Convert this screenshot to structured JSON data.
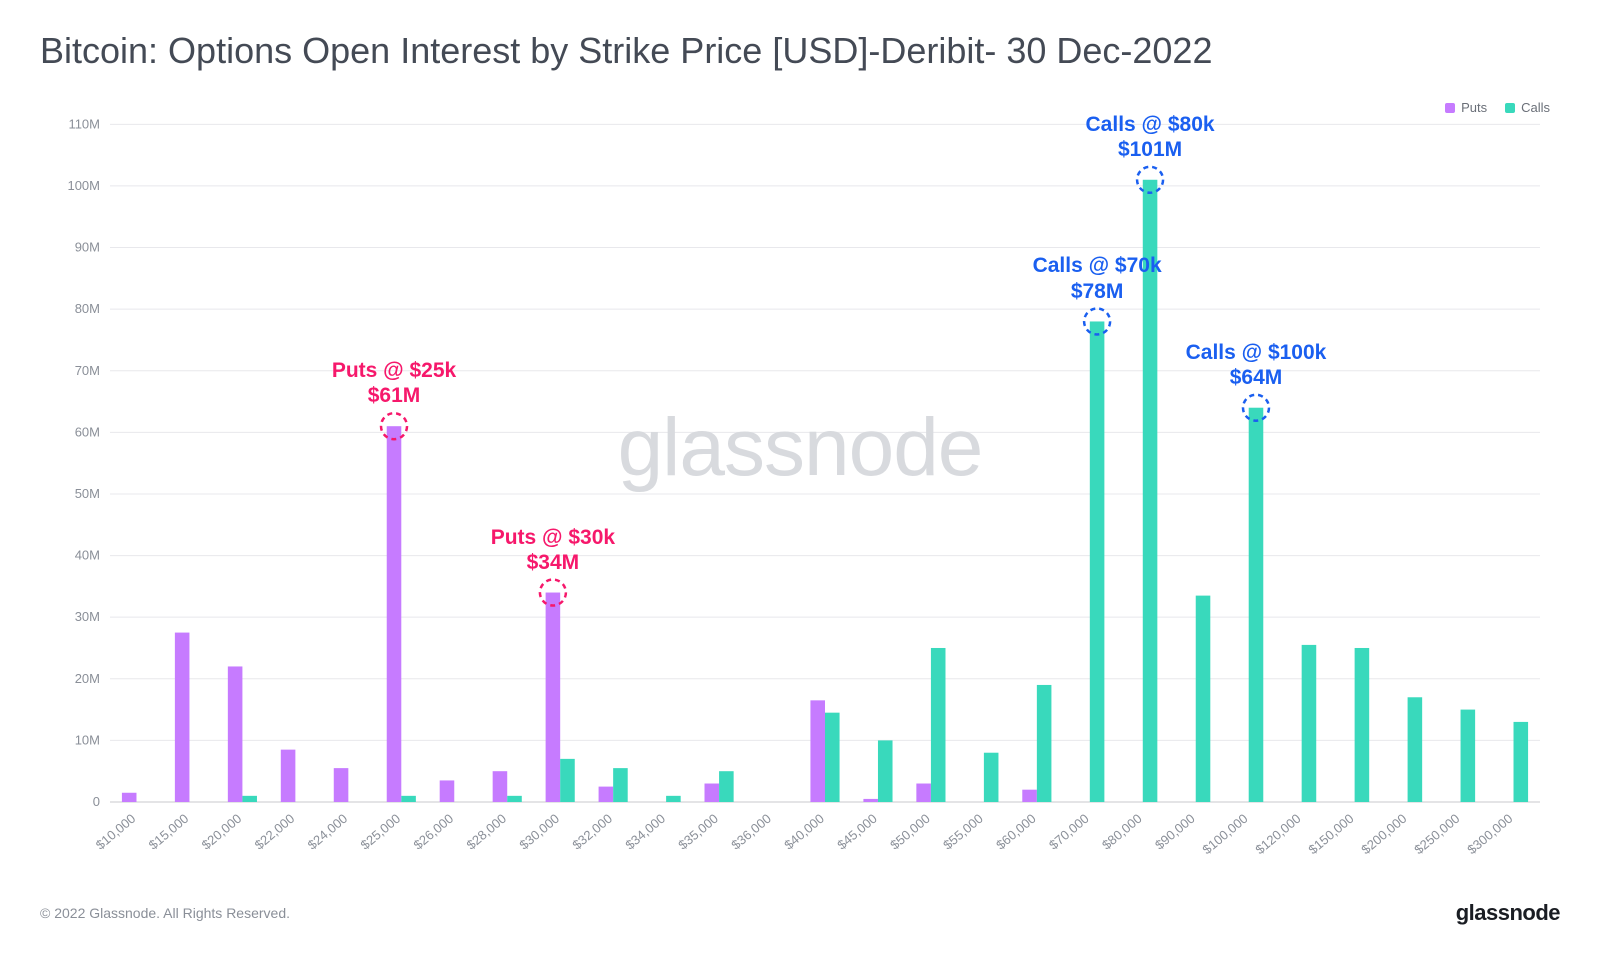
{
  "title": "Bitcoin: Options Open Interest by Strike Price [USD]-Deribit- 30 Dec-2022",
  "watermark": "glassnode",
  "copyright": "© 2022 Glassnode. All Rights Reserved.",
  "brand": "glassnode",
  "legend": {
    "puts_label": "Puts",
    "calls_label": "Calls"
  },
  "chart": {
    "type": "grouped-bar",
    "y_label_suffix": "M",
    "ylim": [
      0,
      112
    ],
    "yticks": [
      0,
      10,
      20,
      30,
      40,
      50,
      60,
      70,
      80,
      90,
      100,
      110
    ],
    "ytick_labels": [
      "0",
      "10M",
      "20M",
      "30M",
      "40M",
      "50M",
      "60M",
      "70M",
      "80M",
      "90M",
      "100M",
      "110M"
    ],
    "categories": [
      "$10,000",
      "$15,000",
      "$20,000",
      "$22,000",
      "$24,000",
      "$25,000",
      "$26,000",
      "$28,000",
      "$30,000",
      "$32,000",
      "$34,000",
      "$35,000",
      "$36,000",
      "$40,000",
      "$45,000",
      "$50,000",
      "$55,000",
      "$60,000",
      "$70,000",
      "$80,000",
      "$90,000",
      "$100,000",
      "$120,000",
      "$150,000",
      "$200,000",
      "$250,000",
      "$300,000"
    ],
    "series": [
      {
        "name": "Puts",
        "color": "#c67bff",
        "values": [
          1.5,
          27.5,
          22,
          8.5,
          5.5,
          61,
          3.5,
          5,
          34,
          2.5,
          0,
          3,
          0,
          16.5,
          0.5,
          3,
          0,
          2,
          0,
          0,
          0,
          0,
          0,
          0,
          0,
          0,
          0
        ]
      },
      {
        "name": "Calls",
        "color": "#39d9bc",
        "values": [
          0,
          0,
          1,
          0,
          0,
          1,
          0,
          1,
          7,
          5.5,
          1,
          5,
          0,
          14.5,
          10,
          25,
          8,
          19,
          78,
          101,
          33.5,
          64,
          25.5,
          25,
          17,
          15,
          13
        ]
      }
    ],
    "colors": {
      "puts": "#c67bff",
      "calls": "#39d9bc",
      "annotation_puts": "#f6186b",
      "annotation_calls": "#1a5ff0",
      "grid": "#e8e8ec",
      "axis": "#c8c8cc",
      "text": "#8a8f98",
      "background": "#ffffff",
      "watermark": "#d8dade"
    },
    "annotations": [
      {
        "type": "puts",
        "category_index": 5,
        "line1": "Puts @ $25k",
        "line2": "$61M"
      },
      {
        "type": "puts",
        "category_index": 8,
        "line1": "Puts @ $30k",
        "line2": "$34M"
      },
      {
        "type": "calls",
        "category_index": 18,
        "line1": "Calls @ $70k",
        "line2": "$78M"
      },
      {
        "type": "calls",
        "category_index": 19,
        "line1": "Calls @ $80k",
        "line2": "$101M"
      },
      {
        "type": "calls",
        "category_index": 21,
        "line1": "Calls @ $100k",
        "line2": "$64M"
      }
    ],
    "bar_group_width_ratio": 0.55,
    "title_fontsize": 36,
    "axis_fontsize": 13,
    "annotation_fontsize": 21
  }
}
